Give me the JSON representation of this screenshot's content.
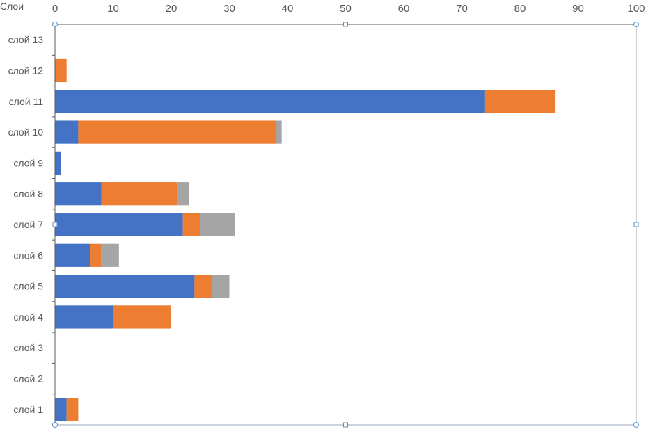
{
  "chart_data": {
    "type": "bar",
    "orientation": "horizontal",
    "stacked": true,
    "ylabel": "Слои",
    "xlim": [
      0,
      100
    ],
    "x_ticks": [
      0,
      10,
      20,
      30,
      40,
      50,
      60,
      70,
      80,
      90,
      100
    ],
    "x_axis_position": "top",
    "grid": false,
    "legend": "none",
    "categories": [
      "слой 1",
      "слой 2",
      "слой 3",
      "слой 4",
      "слой 5",
      "слой 6",
      "слой 7",
      "слой 8",
      "слой 9",
      "слой 10",
      "слой 11",
      "слой 12",
      "слой 13"
    ],
    "series": [
      {
        "color": "#4472C4",
        "values": [
          2,
          0,
          0,
          10,
          24,
          6,
          22,
          8,
          1,
          4,
          74,
          0,
          0
        ]
      },
      {
        "color": "#ED7D31",
        "values": [
          2,
          0,
          0,
          10,
          3,
          2,
          3,
          13,
          0,
          34,
          12,
          2,
          0
        ]
      },
      {
        "color": "#A5A5A5",
        "values": [
          0,
          0,
          0,
          0,
          3,
          3,
          6,
          2,
          0,
          1,
          0,
          0,
          0
        ]
      }
    ]
  }
}
